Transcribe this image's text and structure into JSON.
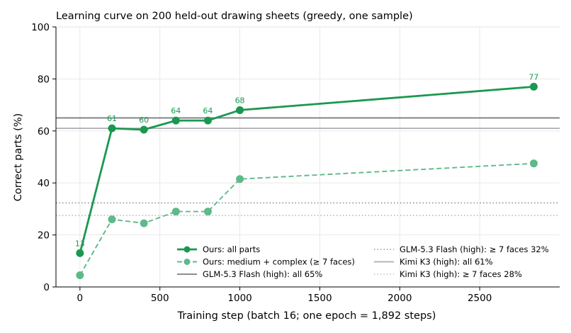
{
  "chart_data": {
    "type": "line",
    "title": "Learning curve on 200 held-out drawing sheets (greedy, one sample)",
    "xlabel": "Training step (batch 16; one epoch = 1,892 steps)",
    "ylabel": "Correct parts (%)",
    "xlim": [
      -150,
      3000
    ],
    "ylim": [
      0,
      100
    ],
    "xticks": [
      0,
      500,
      1000,
      1500,
      2000,
      2500
    ],
    "yticks": [
      0,
      20,
      40,
      60,
      80,
      100
    ],
    "grid": true,
    "legend_position": "lower-right",
    "series": [
      {
        "name": "Ours: all parts",
        "color": "#1a9850",
        "style": "solid",
        "x": [
          0,
          200,
          400,
          600,
          800,
          1000,
          2838
        ],
        "y": [
          13,
          61,
          60.5,
          64,
          64,
          68,
          77
        ],
        "labels": [
          "13",
          "61",
          "60",
          "64",
          "64",
          "68",
          "77"
        ]
      },
      {
        "name": "Ours: medium + complex (≥ 7 faces)",
        "color": "#5fb98a",
        "style": "dashed",
        "x": [
          0,
          200,
          400,
          600,
          800,
          1000,
          2838
        ],
        "y": [
          4.5,
          26,
          24.5,
          29,
          29,
          41.5,
          47.5
        ]
      }
    ],
    "reference_lines": [
      {
        "name": "GLM-5.3 Flash (high): all 65%",
        "y": 65,
        "color": "#7a7f85",
        "style": "solid"
      },
      {
        "name": "GLM-5.3 Flash (high): ≥ 7 faces 32%",
        "y": 32.3,
        "color": "#7a7f85",
        "style": "dotted"
      },
      {
        "name": "Kimi K3 (high): all 61%",
        "y": 61,
        "color": "#a9aeb3",
        "style": "solid"
      },
      {
        "name": "Kimi K3 (high): ≥ 7 faces 28%",
        "y": 27.5,
        "color": "#a9aeb3",
        "style": "dotted"
      }
    ]
  }
}
